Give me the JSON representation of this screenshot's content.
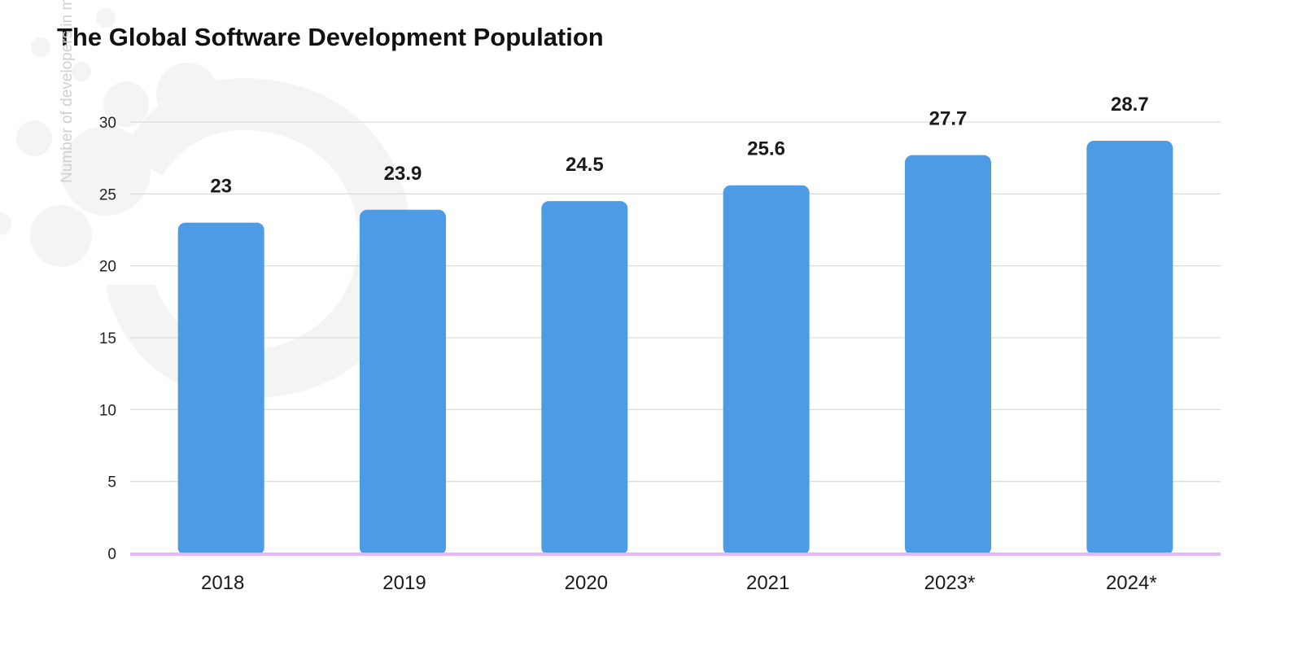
{
  "chart_data": {
    "type": "bar",
    "title": "The Global Software Development Population",
    "ylabel": "Number of developers in millions",
    "xlabel": "",
    "categories": [
      "2018",
      "2019",
      "2020",
      "2021",
      "2023*",
      "2024*"
    ],
    "values": [
      23,
      23.9,
      24.5,
      25.6,
      27.7,
      28.7
    ],
    "data_labels": [
      "23",
      "23.9",
      "24.5",
      "25.6",
      "27.7",
      "28.7"
    ],
    "yticks": [
      "0",
      "5",
      "10",
      "15",
      "20",
      "25",
      "30"
    ],
    "ylim": [
      0,
      30
    ],
    "grid": true,
    "legend": "none",
    "colors": {
      "bar": "#4D9BE4",
      "grid": "#dddddd",
      "baseline": "#e4b8f4"
    }
  }
}
